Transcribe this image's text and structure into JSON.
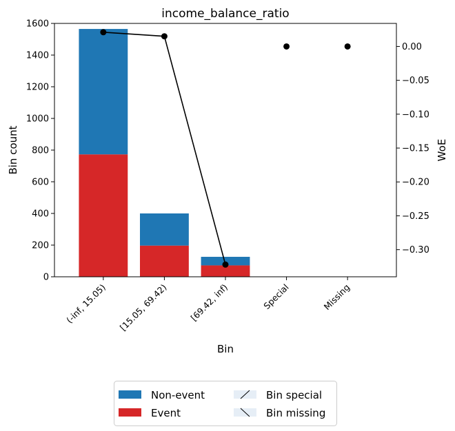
{
  "chart_data": {
    "type": "bar",
    "title": "income_balance_ratio",
    "xlabel": "Bin",
    "ylabel": "Bin count",
    "y2label": "WoE",
    "categories": [
      "(-inf, 15.05)",
      "[15.05, 69.42)",
      "[69.42, inf)",
      "Special",
      "Missing"
    ],
    "ylim": [
      0,
      1600
    ],
    "y_ticks": [
      0,
      200,
      400,
      600,
      800,
      1000,
      1200,
      1400,
      1600
    ],
    "y2lim": [
      -0.34,
      0.034
    ],
    "y2_ticks": [
      0.0,
      -0.05,
      -0.1,
      -0.15,
      -0.2,
      -0.25,
      -0.3
    ],
    "y2_tick_labels": [
      "0.00",
      "−0.05",
      "−0.10",
      "−0.15",
      "−0.20",
      "−0.25",
      "−0.30"
    ],
    "series": [
      {
        "name": "Event",
        "kind": "bar",
        "color": "#d62728",
        "values": [
          773,
          197,
          72,
          0,
          0
        ]
      },
      {
        "name": "Non-event",
        "kind": "bar",
        "color": "#1f77b4",
        "values": [
          792,
          203,
          54,
          0,
          0
        ]
      },
      {
        "name": "WoE",
        "kind": "line",
        "color": "#000000",
        "values": [
          0.021,
          0.015,
          -0.322,
          0.0,
          0.0
        ]
      }
    ],
    "legend": {
      "placement": "bottom",
      "entries": [
        {
          "label": "Non-event",
          "swatch": "#1f77b4"
        },
        {
          "label": "Event",
          "swatch": "#d62728"
        },
        {
          "label": "Bin special",
          "swatch": "#e6eef6",
          "hatch": "/"
        },
        {
          "label": "Bin missing",
          "swatch": "#e6eef6",
          "hatch": "\\"
        }
      ]
    },
    "grid": false
  }
}
